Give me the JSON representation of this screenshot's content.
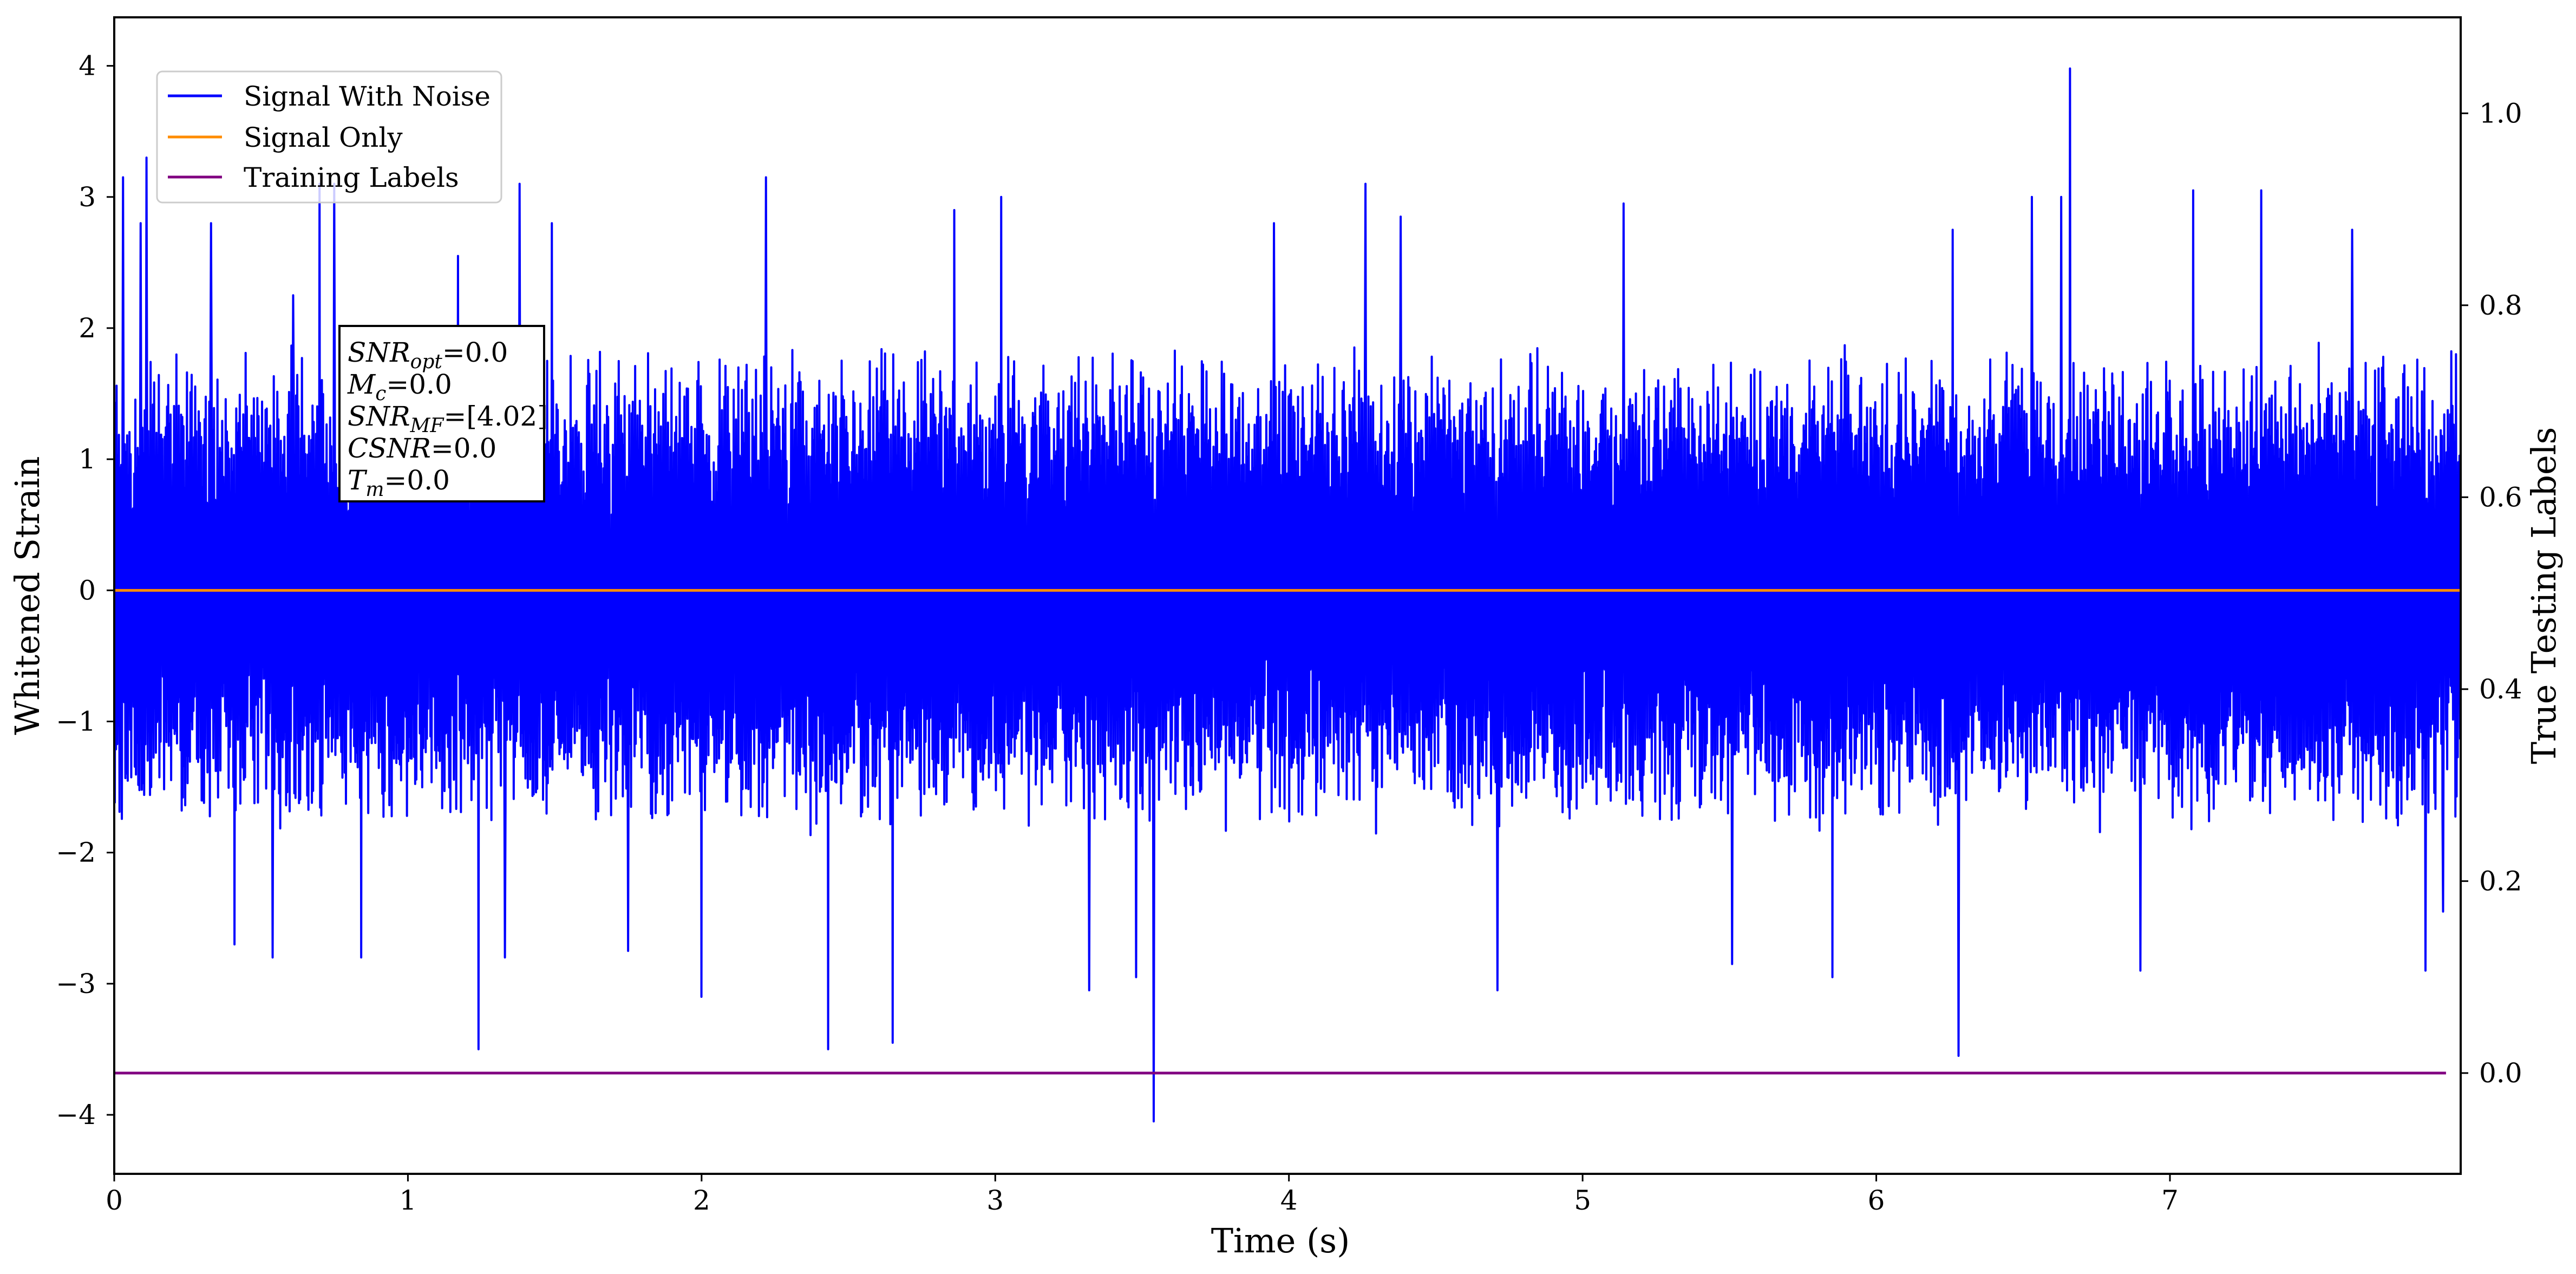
{
  "chart_data": {
    "type": "line",
    "xlabel": "Time (s)",
    "ylabel": "Whitened Strain",
    "y2label": "True Testing Labels",
    "xlim": [
      0,
      7.99
    ],
    "ylim": [
      -4.45,
      4.37
    ],
    "y2lim": [
      -0.105,
      1.1
    ],
    "x_ticks": [
      "0",
      "1",
      "2",
      "3",
      "4",
      "5",
      "6",
      "7"
    ],
    "y_ticks": [
      "4",
      "3",
      "2",
      "1",
      "0",
      "−1",
      "−2",
      "−3",
      "−4"
    ],
    "y2_ticks": [
      "1.0",
      "0.8",
      "0.6",
      "0.4",
      "0.2",
      "0.0"
    ],
    "grid": false,
    "legend_position": "upper-left",
    "series": [
      {
        "name": "Signal With Noise",
        "color": "#0000ff",
        "axis": "left",
        "envelope_upper": 1.9,
        "envelope_lower": -1.9,
        "duration": 7.99,
        "spikes": [
          [
            0.03,
            3.15
          ],
          [
            0.09,
            2.8
          ],
          [
            0.11,
            3.3
          ],
          [
            0.33,
            2.8
          ],
          [
            0.41,
            -2.7
          ],
          [
            0.54,
            -2.8
          ],
          [
            0.61,
            2.25
          ],
          [
            0.7,
            3.1
          ],
          [
            0.75,
            3.1
          ],
          [
            0.84,
            -2.8
          ],
          [
            1.17,
            2.55
          ],
          [
            1.24,
            -3.5
          ],
          [
            1.33,
            -2.8
          ],
          [
            1.38,
            3.1
          ],
          [
            1.49,
            2.8
          ],
          [
            1.75,
            -2.75
          ],
          [
            2.0,
            -3.1
          ],
          [
            2.22,
            3.15
          ],
          [
            2.43,
            -3.5
          ],
          [
            2.65,
            -3.45
          ],
          [
            2.86,
            2.9
          ],
          [
            3.02,
            3.0
          ],
          [
            3.32,
            -3.05
          ],
          [
            3.48,
            -2.95
          ],
          [
            3.54,
            -4.05
          ],
          [
            3.95,
            2.8
          ],
          [
            4.26,
            3.1
          ],
          [
            4.38,
            2.85
          ],
          [
            4.71,
            -3.05
          ],
          [
            5.14,
            2.95
          ],
          [
            5.51,
            -2.85
          ],
          [
            5.85,
            -2.95
          ],
          [
            6.26,
            2.75
          ],
          [
            6.28,
            -3.55
          ],
          [
            6.53,
            3.0
          ],
          [
            6.63,
            3.0
          ],
          [
            6.66,
            3.98
          ],
          [
            6.9,
            -2.9
          ],
          [
            7.08,
            3.05
          ],
          [
            7.31,
            3.05
          ],
          [
            7.62,
            2.75
          ],
          [
            7.87,
            -2.9
          ],
          [
            7.93,
            -2.45
          ]
        ]
      },
      {
        "name": "Signal Only",
        "color": "#ff8c00",
        "axis": "left",
        "x": [
          0,
          7.99
        ],
        "y": [
          0,
          0
        ]
      },
      {
        "name": "Training Labels",
        "color": "#800080",
        "axis": "right",
        "x": [
          0,
          7.94
        ],
        "y": [
          0,
          0
        ]
      }
    ],
    "annotation": {
      "lines": [
        {
          "sym": "SNR",
          "sub": "opt",
          "value": "=0.0"
        },
        {
          "sym": "M",
          "sub": "c",
          "value": "=0.0"
        },
        {
          "sym": "SNR",
          "sub": "MF",
          "value": "=[4.02]"
        },
        {
          "sym": "CSNR",
          "sub": "",
          "value": "=0.0"
        },
        {
          "sym": "T",
          "sub": "m",
          "value": "=0.0"
        }
      ]
    }
  }
}
